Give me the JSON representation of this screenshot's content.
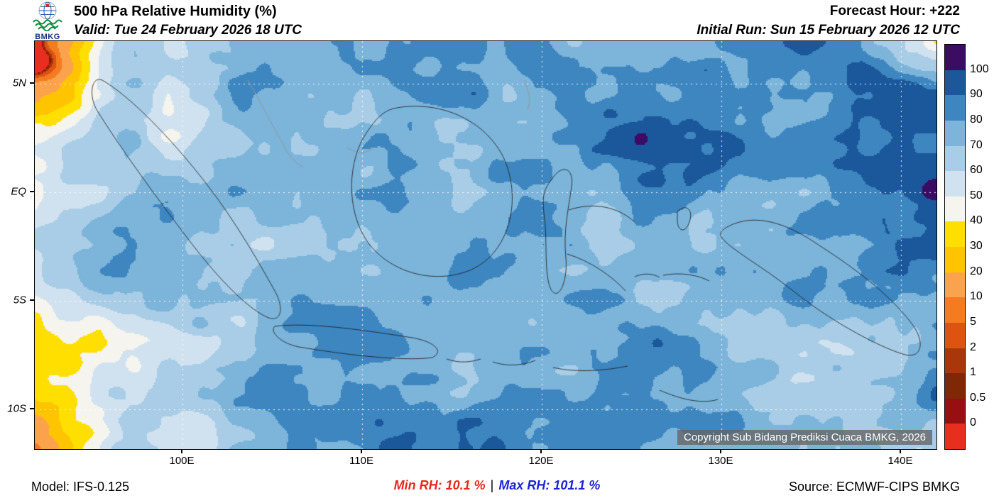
{
  "header": {
    "logo_text": "BMKG",
    "title": "500 hPa Relative Humidity (%)",
    "forecast_hour": "Forecast Hour: +222",
    "valid": "Valid: Tue 24 February 2026 18 UTC",
    "initial_run": "Initial Run: Sun 15 February 2026 12 UTC"
  },
  "map": {
    "copyright": "Copyright Sub Bidang Prediksi Cuaca BMKG, 2026",
    "x_tick_labels": [
      "100E",
      "110E",
      "120E",
      "130E",
      "140E"
    ],
    "y_tick_labels": [
      "5N",
      "EQ",
      "5S",
      "10S"
    ]
  },
  "footer": {
    "model": "Model: IFS-0.125",
    "min_rh": "Min RH:  10.1 %",
    "separator": "|",
    "max_rh": "Max RH: 101.1 %",
    "source": "Source: ECMWF-CIPS BMKG"
  },
  "chart_data": {
    "type": "heatmap",
    "title": "500 hPa Relative Humidity (%)",
    "variable": "relative_humidity_percent",
    "level_hPa": 500,
    "forecast_hour": 222,
    "valid_time": "Tue 24 February 2026 18 UTC",
    "initial_run": "Sun 15 February 2026 12 UTC",
    "model": "IFS-0.125",
    "source": "ECMWF-CIPS BMKG",
    "min_rh_percent": 10.1,
    "max_rh_percent": 101.1,
    "map_region": "Indonesia, approx 92E-142E and 12S-7N",
    "x_axis": {
      "label": "longitude",
      "ticks": [
        "100E",
        "110E",
        "120E",
        "130E",
        "140E"
      ]
    },
    "y_axis": {
      "label": "latitude",
      "ticks": [
        "5N",
        "EQ",
        "5S",
        "10S"
      ]
    },
    "gridlines": {
      "style": "dashed",
      "color": "#ffffff"
    },
    "legend_position": "right",
    "colorbar": {
      "tick_labels": [
        "100",
        "90",
        "80",
        "70",
        "60",
        "50",
        "40",
        "30",
        "20",
        "10",
        "5",
        "2",
        "1",
        "0.5",
        "0"
      ],
      "segment_colors_top_to_bottom": [
        "#3a0c63",
        "#1a579b",
        "#3e86c0",
        "#7cb4da",
        "#a9cde6",
        "#d0e2f0",
        "#f5f4ee",
        "#ffdf00",
        "#ffc400",
        "#fba24c",
        "#f47b20",
        "#dd5310",
        "#a8380c",
        "#802806",
        "#970f12",
        "#e82e1e"
      ]
    }
  }
}
